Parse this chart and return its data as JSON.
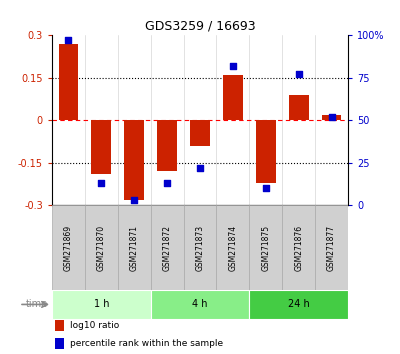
{
  "title": "GDS3259 / 16693",
  "samples": [
    "GSM271869",
    "GSM271870",
    "GSM271871",
    "GSM271872",
    "GSM271873",
    "GSM271874",
    "GSM271875",
    "GSM271876",
    "GSM271877"
  ],
  "log10_ratio": [
    0.27,
    -0.19,
    -0.28,
    -0.18,
    -0.09,
    0.16,
    -0.22,
    0.09,
    0.02
  ],
  "percentile_rank": [
    97,
    13,
    3,
    13,
    22,
    82,
    10,
    77,
    52
  ],
  "bar_color": "#cc2200",
  "dot_color": "#0000cc",
  "ylim_left": [
    -0.3,
    0.3
  ],
  "ylim_right": [
    0,
    100
  ],
  "yticks_left": [
    -0.3,
    -0.15,
    0,
    0.15,
    0.3
  ],
  "yticks_right": [
    0,
    25,
    50,
    75,
    100
  ],
  "hlines_dotted": [
    -0.15,
    0.15
  ],
  "hline_dashed": 0,
  "time_groups": [
    {
      "label": "1 h",
      "start": 0,
      "end": 3,
      "color": "#ccffcc"
    },
    {
      "label": "4 h",
      "start": 3,
      "end": 6,
      "color": "#88ee88"
    },
    {
      "label": "24 h",
      "start": 6,
      "end": 9,
      "color": "#44cc44"
    }
  ],
  "legend_items": [
    {
      "label": "log10 ratio",
      "color": "#cc2200"
    },
    {
      "label": "percentile rank within the sample",
      "color": "#0000cc"
    }
  ],
  "time_label": "time",
  "background_color": "#ffffff",
  "bar_width": 0.6,
  "sample_box_color": "#d0d0d0",
  "sample_box_edge": "#aaaaaa",
  "arrow_color": "#888888"
}
